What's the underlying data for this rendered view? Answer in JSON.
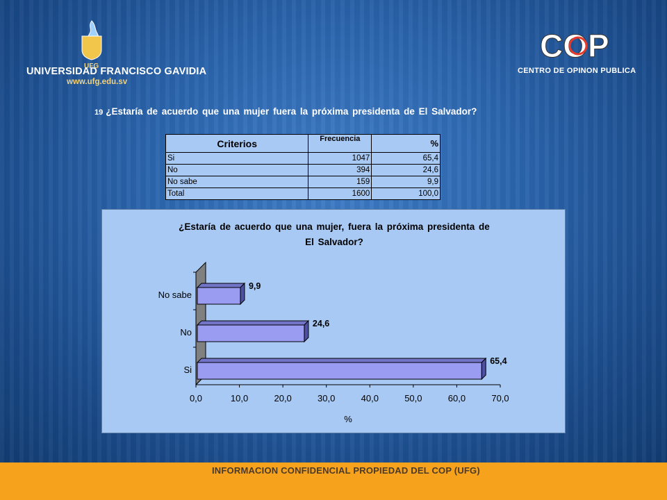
{
  "header": {
    "university_name": "UNIVERSIDAD FRANCISCO GAVIDIA",
    "university_url": "www.ufg.edu.sv",
    "ufg_badge": "UFG",
    "cop_logo": "COP",
    "cop_subtitle": "CENTRO DE OPINON PUBLICA"
  },
  "question": {
    "number": "19",
    "text": "¿Estaría  de acuerdo  que una mujer fuera la próxima presidenta  de El Salvador?"
  },
  "table": {
    "headers": [
      "Criterios",
      "Frecuencia",
      "%"
    ],
    "rows": [
      [
        "Si",
        "1047",
        "65,4"
      ],
      [
        "No",
        "394",
        "24,6"
      ],
      [
        "No sabe",
        "159",
        "9,9"
      ],
      [
        "Total",
        "1600",
        "100,0"
      ]
    ]
  },
  "chart_data": {
    "type": "bar",
    "orientation": "horizontal",
    "title_line1": "¿Estaría de acuerdo  que una mujer, fuera la próxima presidenta de",
    "title_line2": "El Salvador?",
    "categories": [
      "Si",
      "No",
      "No sabe"
    ],
    "values": [
      65.4,
      24.6,
      9.9
    ],
    "value_labels": [
      "65,4",
      "24,6",
      "9,9"
    ],
    "xlabel": "%",
    "xlim": [
      0,
      70
    ],
    "xticks": [
      "0,0",
      "10,0",
      "20,0",
      "30,0",
      "40,0",
      "50,0",
      "60,0",
      "70,0"
    ],
    "bar_color": "#9a9cf2",
    "grid": false,
    "style": "3d"
  },
  "footer": {
    "text": "INFORMACION CONFIDENCIAL PROPIEDAD DEL COP (UFG)"
  },
  "colors": {
    "background": "#2b65ad",
    "footer": "#f7a21c",
    "chart_background": "#a7c9f3"
  }
}
